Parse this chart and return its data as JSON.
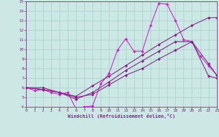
{
  "xlabel": "Windchill (Refroidissement éolien,°C)",
  "xlim": [
    0,
    23
  ],
  "ylim": [
    4,
    15
  ],
  "xticks": [
    0,
    1,
    2,
    3,
    4,
    5,
    6,
    7,
    8,
    9,
    10,
    11,
    12,
    13,
    14,
    15,
    16,
    17,
    18,
    19,
    20,
    21,
    22,
    23
  ],
  "yticks": [
    4,
    5,
    6,
    7,
    8,
    9,
    10,
    11,
    12,
    13,
    14,
    15
  ],
  "bg_color": "#cce8e4",
  "grid_color": "#aacccc",
  "lc_bright": "#cc22cc",
  "lc_dark": "#882288",
  "line1_x": [
    0,
    1,
    2,
    3,
    4,
    5,
    6,
    7,
    8,
    9,
    10,
    11,
    12,
    13,
    14,
    15,
    16,
    17,
    18,
    19,
    20,
    21,
    22,
    23
  ],
  "line1_y": [
    6.0,
    5.7,
    5.8,
    5.5,
    5.3,
    5.5,
    3.8,
    4.0,
    4.1,
    6.4,
    7.5,
    9.9,
    11.1,
    9.8,
    9.8,
    12.5,
    14.8,
    14.7,
    13.0,
    11.0,
    10.8,
    9.3,
    8.3,
    7.3
  ],
  "line2_x": [
    0,
    2,
    4,
    6,
    8,
    10,
    12,
    14,
    16,
    18,
    20,
    22,
    23
  ],
  "line2_y": [
    6.0,
    6.0,
    5.5,
    5.1,
    6.2,
    7.2,
    8.3,
    9.4,
    10.5,
    11.5,
    12.5,
    13.3,
    13.3
  ],
  "line3_x": [
    0,
    2,
    4,
    6,
    8,
    10,
    12,
    14,
    16,
    18,
    20,
    22,
    23
  ],
  "line3_y": [
    6.0,
    5.8,
    5.5,
    4.8,
    5.5,
    6.6,
    7.8,
    8.8,
    9.8,
    10.8,
    10.8,
    8.5,
    7.3
  ],
  "line4_x": [
    0,
    2,
    4,
    6,
    8,
    10,
    12,
    14,
    16,
    18,
    20,
    22,
    23
  ],
  "line4_y": [
    6.0,
    5.8,
    5.5,
    5.0,
    5.3,
    6.3,
    7.3,
    8.0,
    9.0,
    9.9,
    10.8,
    7.2,
    7.0
  ]
}
